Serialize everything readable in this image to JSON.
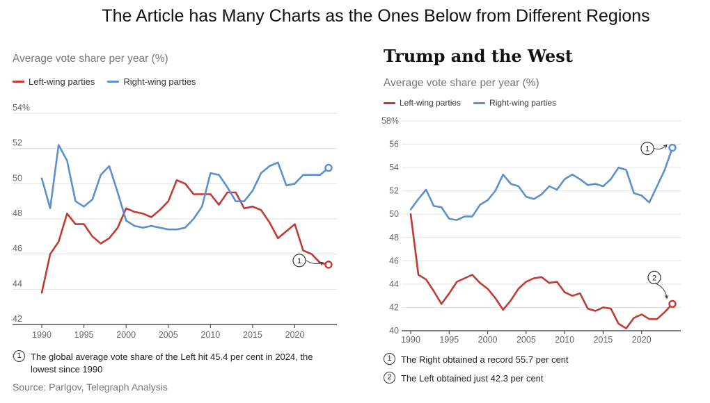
{
  "page_title": "The Article has Many Charts as the Ones Below from Different Regions",
  "colors": {
    "left": "#bf3b36",
    "right": "#5b8fcd",
    "grid": "#e3e3e3",
    "axis": "#333333"
  },
  "chart_data": [
    {
      "type": "line",
      "title": "",
      "subtitle": "Average vote share per year (%)",
      "ylabel": "",
      "xlabel": "",
      "xlim": [
        1990,
        2024
      ],
      "ylim": [
        42,
        54
      ],
      "yticks": [
        42,
        44,
        46,
        48,
        50,
        52,
        54
      ],
      "ytick_labels": [
        "42",
        "44",
        "46",
        "48",
        "50",
        "52",
        "54%"
      ],
      "xticks": [
        1990,
        1995,
        2000,
        2005,
        2010,
        2015,
        2020
      ],
      "xtick_labels": [
        "1990",
        "1995",
        "2000",
        "2005",
        "2010",
        "2015",
        "2020"
      ],
      "grid": true,
      "legend": "top-left",
      "x": [
        1990,
        1991,
        1992,
        1993,
        1994,
        1995,
        1996,
        1997,
        1998,
        1999,
        2000,
        2001,
        2002,
        2003,
        2004,
        2005,
        2006,
        2007,
        2008,
        2009,
        2010,
        2011,
        2012,
        2013,
        2014,
        2015,
        2016,
        2017,
        2018,
        2019,
        2020,
        2021,
        2022,
        2023,
        2024
      ],
      "series": [
        {
          "name": "Left-wing parties",
          "color_key": "left",
          "values": [
            43.8,
            46.0,
            46.7,
            48.3,
            47.7,
            47.7,
            47.0,
            46.6,
            46.9,
            47.5,
            48.6,
            48.4,
            48.3,
            48.1,
            48.5,
            49.0,
            50.2,
            50.0,
            49.4,
            49.4,
            49.4,
            48.8,
            49.5,
            49.5,
            48.6,
            48.7,
            48.5,
            47.8,
            46.9,
            47.3,
            47.7,
            46.2,
            46.0,
            45.5,
            45.4
          ],
          "end_marker": true
        },
        {
          "name": "Right-wing parties",
          "color_key": "right",
          "values": [
            50.3,
            48.6,
            52.2,
            51.3,
            49.0,
            48.7,
            49.1,
            50.5,
            51.0,
            49.5,
            47.9,
            47.6,
            47.5,
            47.6,
            47.5,
            47.4,
            47.4,
            47.5,
            48.0,
            48.7,
            50.6,
            50.5,
            49.8,
            49.0,
            49.0,
            49.6,
            50.6,
            51.0,
            51.2,
            49.9,
            50.0,
            50.5,
            50.5,
            50.5,
            50.9
          ],
          "end_marker": true
        }
      ],
      "annotations": [
        {
          "label": "1",
          "x": 2024,
          "y": 45.4
        }
      ],
      "notes": [
        {
          "label": "1",
          "text": "The global average vote share of the Left hit 45.4 per cent in 2024, the lowest since 1990"
        }
      ],
      "source": "Source: Parlgov, Telegraph Analysis"
    },
    {
      "type": "line",
      "title": "Trump and the West",
      "subtitle": "Average vote share per year (%)",
      "ylabel": "",
      "xlabel": "",
      "xlim": [
        1990,
        2024
      ],
      "ylim": [
        40,
        58
      ],
      "yticks": [
        40,
        42,
        44,
        46,
        48,
        50,
        52,
        54,
        56,
        58
      ],
      "ytick_labels": [
        "40",
        "42",
        "44",
        "46",
        "48",
        "50",
        "52",
        "54",
        "56",
        "58%"
      ],
      "xticks": [
        1990,
        1995,
        2000,
        2005,
        2010,
        2015,
        2020
      ],
      "xtick_labels": [
        "1990",
        "1995",
        "2000",
        "2005",
        "2010",
        "2015",
        "2020"
      ],
      "grid": true,
      "legend": "top-left",
      "x": [
        1990,
        1991,
        1992,
        1993,
        1994,
        1995,
        1996,
        1997,
        1998,
        1999,
        2000,
        2001,
        2002,
        2003,
        2004,
        2005,
        2006,
        2007,
        2008,
        2009,
        2010,
        2011,
        2012,
        2013,
        2014,
        2015,
        2016,
        2017,
        2018,
        2019,
        2020,
        2021,
        2022,
        2023,
        2024
      ],
      "series": [
        {
          "name": "Left-wing parties",
          "color_key": "left",
          "values": [
            50.0,
            44.8,
            44.4,
            43.4,
            42.3,
            43.2,
            44.2,
            44.5,
            44.8,
            44.1,
            43.6,
            42.8,
            41.8,
            42.6,
            43.6,
            44.2,
            44.5,
            44.6,
            44.1,
            44.2,
            43.3,
            43.0,
            43.2,
            41.9,
            41.7,
            42.0,
            41.9,
            40.6,
            40.2,
            41.1,
            41.4,
            41.0,
            41.0,
            41.6,
            42.3
          ],
          "end_marker": true
        },
        {
          "name": "Right-wing parties",
          "color_key": "right",
          "values": [
            50.4,
            51.3,
            52.1,
            50.7,
            50.6,
            49.6,
            49.5,
            49.8,
            49.8,
            50.8,
            51.2,
            52.0,
            53.4,
            52.6,
            52.4,
            51.5,
            51.3,
            51.7,
            52.4,
            52.1,
            53.0,
            53.4,
            53.0,
            52.5,
            52.6,
            52.4,
            53.0,
            54.0,
            53.8,
            51.8,
            51.6,
            51.0,
            52.4,
            53.8,
            55.7
          ],
          "end_marker": true
        }
      ],
      "annotations": [
        {
          "label": "1",
          "x": 2024,
          "y": 55.7
        },
        {
          "label": "2",
          "x": 2024,
          "y": 42.3
        }
      ],
      "notes": [
        {
          "label": "1",
          "text": "The Right obtained a record 55.7 per cent"
        },
        {
          "label": "2",
          "text": "The Left obtained just 42.3 per cent"
        }
      ]
    }
  ]
}
